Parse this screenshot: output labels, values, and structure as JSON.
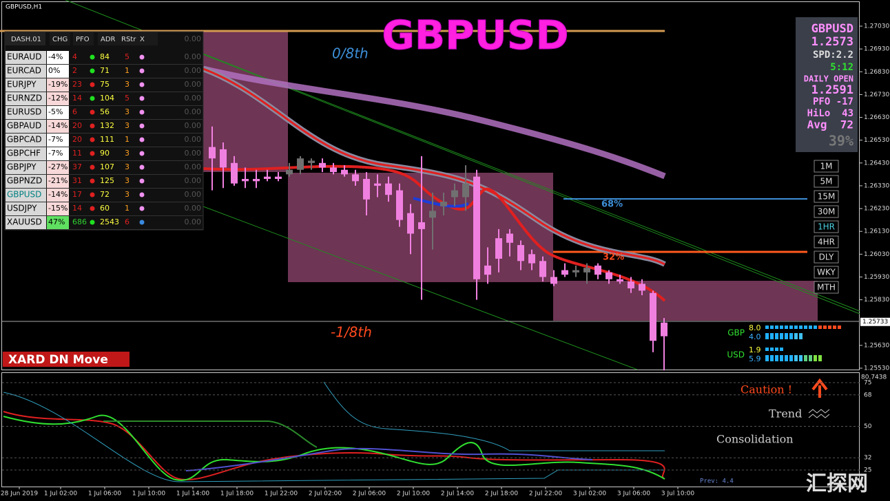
{
  "window_title": "GBPUSD,H1",
  "big_title": "GBPUSD",
  "annotations": {
    "top_level": "0/8th",
    "bottom_level": "-1/8th",
    "upper_pct": "68%",
    "lower_pct": "32%",
    "move_label": "XARD DN Move",
    "caution": "Caution !",
    "trend": "Trend",
    "consolidation": "Consolidation",
    "prev": "Prev: 4.4",
    "watermark": "汇探网"
  },
  "dashboard": {
    "header": [
      "DASH.01",
      "CHG",
      "PFO",
      "ADR",
      "RStr",
      "X"
    ],
    "header_value": "0.00",
    "rows": [
      {
        "pair": "EURAUD",
        "chg": "-4%",
        "pfo": "4",
        "dot": "green",
        "adr": "84",
        "rstr": "5",
        "value": "0.00"
      },
      {
        "pair": "EURCAD",
        "chg": "0%",
        "pfo": "2",
        "dot": "green",
        "adr": "71",
        "rstr": "1",
        "value": "0.00"
      },
      {
        "pair": "EURJPY",
        "chg": "-19%",
        "pfo": "23",
        "dot": "red",
        "adr": "75",
        "rstr": "3",
        "value": "0.00"
      },
      {
        "pair": "EURNZD",
        "chg": "-12%",
        "pfo": "14",
        "dot": "green",
        "adr": "104",
        "rstr": "5",
        "value": "0.00"
      },
      {
        "pair": "EURUSD",
        "chg": "-5%",
        "pfo": "6",
        "dot": "red",
        "adr": "56",
        "rstr": "3",
        "value": "0.00"
      },
      {
        "pair": "GBPAUD",
        "chg": "-14%",
        "pfo": "20",
        "dot": "red",
        "adr": "132",
        "rstr": "3",
        "value": "0.00"
      },
      {
        "pair": "GBPCAD",
        "chg": "-7%",
        "pfo": "20",
        "dot": "red",
        "adr": "111",
        "rstr": "1",
        "value": "0.00"
      },
      {
        "pair": "GBPCHF",
        "chg": "-7%",
        "pfo": "11",
        "dot": "red",
        "adr": "90",
        "rstr": "3",
        "value": "0.00"
      },
      {
        "pair": "GBPJPY",
        "chg": "-27%",
        "pfo": "37",
        "dot": "red",
        "adr": "107",
        "rstr": "3",
        "value": "0.00"
      },
      {
        "pair": "GBPNZD",
        "chg": "-21%",
        "pfo": "31",
        "dot": "red",
        "adr": "125",
        "rstr": "3",
        "value": "0.00"
      },
      {
        "pair": "GBPUSD",
        "chg": "-14%",
        "pfo": "17",
        "dot": "red",
        "adr": "72",
        "rstr": "3",
        "value": "0.00"
      },
      {
        "pair": "USDJPY",
        "chg": "-15%",
        "pfo": "14",
        "dot": "red",
        "adr": "60",
        "rstr": "1",
        "value": "0.00"
      },
      {
        "pair": "XAUUSD",
        "chg": "47%",
        "pfo": "686",
        "dot": "green",
        "adr": "2543",
        "rstr": "6",
        "value": "0.00"
      }
    ]
  },
  "info_panel": [
    "GBPUSD",
    "1.2573",
    "SPD:2.2",
    "5:12",
    "DAILY OPEN",
    "1.2591",
    "PFO -17",
    "HiLo  43",
    "Avg  72",
    "39%"
  ],
  "timeframes": [
    "1M",
    "5M",
    "15M",
    "30M",
    "1HR",
    "4HR",
    "DLY",
    "WKY",
    "MTH"
  ],
  "strength": [
    {
      "currency": "GBP",
      "a": "8.0",
      "b": "4.0"
    },
    {
      "currency": "USD",
      "a": "1.9",
      "b": "5.9"
    }
  ],
  "price_ticks": [
    {
      "value": 1.2703,
      "label": "1.27030"
    },
    {
      "value": 1.2693,
      "label": "1.26930"
    },
    {
      "value": 1.2683,
      "label": "1.26830"
    },
    {
      "value": 1.2673,
      "label": "1.26730"
    },
    {
      "value": 1.2663,
      "label": "1.26630"
    },
    {
      "value": 1.2653,
      "label": "1.26530"
    },
    {
      "value": 1.2643,
      "label": "1.26430"
    },
    {
      "value": 1.2633,
      "label": "1.26330"
    },
    {
      "value": 1.2623,
      "label": "1.26230"
    },
    {
      "value": 1.2613,
      "label": "1.26130"
    },
    {
      "value": 1.2603,
      "label": "1.26030"
    },
    {
      "value": 1.2593,
      "label": "1.25930"
    },
    {
      "value": 1.2583,
      "label": "1.25830"
    },
    {
      "value": 1.2563,
      "label": "1.25630"
    },
    {
      "value": 1.2553,
      "label": "1.25530"
    }
  ],
  "current_price": 1.25733,
  "indicator_top": "80.7438",
  "indicator_ticks": [
    75,
    68,
    50,
    32,
    25
  ],
  "time_labels": [
    "28 Jun 2019",
    "1 Jul 02:00",
    "1 Jul 06:00",
    "1 Jul 10:00",
    "1 Jul 14:00",
    "1 Jul 18:00",
    "1 Jul 22:00",
    "2 Jul 02:00",
    "2 Jul 06:00",
    "2 Jul 10:00",
    "2 Jul 14:00",
    "2 Jul 18:00",
    "2 Jul 22:00",
    "3 Jul 02:00",
    "3 Jul 06:00",
    "3 Jul 10:00"
  ],
  "candles": [
    [
      1.265,
      1.2659,
      1.2631,
      1.2645
    ],
    [
      1.2649,
      1.2652,
      1.2632,
      1.2641
    ],
    [
      1.2643,
      1.2646,
      1.2633,
      1.2634
    ],
    [
      1.2636,
      1.2641,
      1.2632,
      1.2635
    ],
    [
      1.2636,
      1.264,
      1.2632,
      1.2635
    ],
    [
      1.2637,
      1.264,
      1.2635,
      1.2636
    ],
    [
      1.2637,
      1.2639,
      1.2635,
      1.2636
    ],
    [
      1.2638,
      1.2643,
      1.2637,
      1.264
    ],
    [
      1.264,
      1.2646,
      1.2638,
      1.2645
    ],
    [
      1.2643,
      1.2645,
      1.264,
      1.2644
    ],
    [
      1.2643,
      1.2645,
      1.2639,
      1.2641
    ],
    [
      1.2641,
      1.2643,
      1.2638,
      1.2639
    ],
    [
      1.264,
      1.2642,
      1.2637,
      1.2638
    ],
    [
      1.2638,
      1.264,
      1.2633,
      1.2635
    ],
    [
      1.2636,
      1.2639,
      1.262,
      1.2627
    ],
    [
      1.2634,
      1.2638,
      1.2628,
      1.2633
    ],
    [
      1.2634,
      1.2637,
      1.2626,
      1.2629
    ],
    [
      1.2631,
      1.2634,
      1.2615,
      1.2618
    ],
    [
      1.2621,
      1.2625,
      1.2603,
      1.2612
    ],
    [
      1.2617,
      1.2646,
      1.2583,
      1.2614
    ],
    [
      1.2619,
      1.263,
      1.2605,
      1.2622
    ],
    [
      1.2624,
      1.263,
      1.262,
      1.2626
    ],
    [
      1.2628,
      1.2634,
      1.2624,
      1.2631
    ],
    [
      1.2628,
      1.2642,
      1.2622,
      1.2634
    ],
    [
      1.2637,
      1.264,
      1.2583,
      1.2592
    ],
    [
      1.2598,
      1.2606,
      1.259,
      1.2594
    ],
    [
      1.261,
      1.2614,
      1.2595,
      1.2601
    ],
    [
      1.2612,
      1.2614,
      1.2602,
      1.2608
    ],
    [
      1.2607,
      1.2609,
      1.2596,
      1.26
    ],
    [
      1.2603,
      1.2605,
      1.2596,
      1.2599
    ],
    [
      1.26,
      1.2602,
      1.2591,
      1.2593
    ],
    [
      1.2593,
      1.2596,
      1.2589,
      1.259
    ],
    [
      1.2596,
      1.2599,
      1.2593,
      1.2594
    ],
    [
      1.2595,
      1.2598,
      1.2593,
      1.2596
    ],
    [
      1.2595,
      1.2599,
      1.259,
      1.2597
    ],
    [
      1.2598,
      1.2599,
      1.2592,
      1.2594
    ],
    [
      1.2595,
      1.2596,
      1.259,
      1.2592
    ],
    [
      1.2592,
      1.2594,
      1.259,
      1.2591
    ],
    [
      1.2591,
      1.2593,
      1.2586,
      1.2588
    ],
    [
      1.259,
      1.2592,
      1.2585,
      1.2587
    ],
    [
      1.2586,
      1.2587,
      1.256,
      1.2565
    ],
    [
      1.2573,
      1.2575,
      1.2552,
      1.2567
    ]
  ]
}
